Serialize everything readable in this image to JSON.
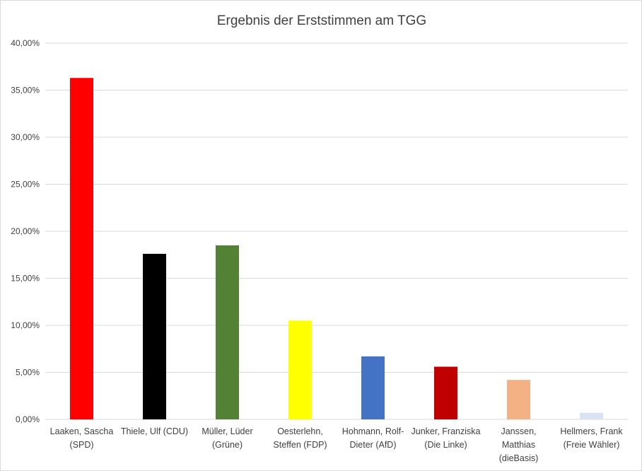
{
  "chart_data": {
    "type": "bar",
    "title": "Ergebnis der Erststimmen am TGG",
    "xlabel": "",
    "ylabel": "",
    "ylim": [
      0,
      40
    ],
    "y_ticks": [
      "0,00%",
      "5,00%",
      "10,00%",
      "15,00%",
      "20,00%",
      "25,00%",
      "30,00%",
      "35,00%",
      "40,00%"
    ],
    "grid": true,
    "legend": "none",
    "categories": [
      [
        "Laaken, Sascha",
        "(SPD)"
      ],
      [
        "Thiele, Ulf (CDU)"
      ],
      [
        "Müller, Lüder",
        "(Grüne)"
      ],
      [
        "Oesterlehn,",
        "Steffen (FDP)"
      ],
      [
        "Hohmann, Rolf-",
        "Dieter (AfD)"
      ],
      [
        "Junker, Franziska",
        "(Die Linke)"
      ],
      [
        "Janssen,",
        "Matthias",
        "(dieBasis)"
      ],
      [
        "Hellmers, Frank",
        "(Freie Wähler)"
      ]
    ],
    "values": [
      36.3,
      17.6,
      18.5,
      10.5,
      6.7,
      5.6,
      4.2,
      0.7
    ],
    "colors": [
      "#ff0000",
      "#000000",
      "#548235",
      "#ffff00",
      "#4472c4",
      "#c00000",
      "#f4b183",
      "#dae3f3"
    ]
  }
}
